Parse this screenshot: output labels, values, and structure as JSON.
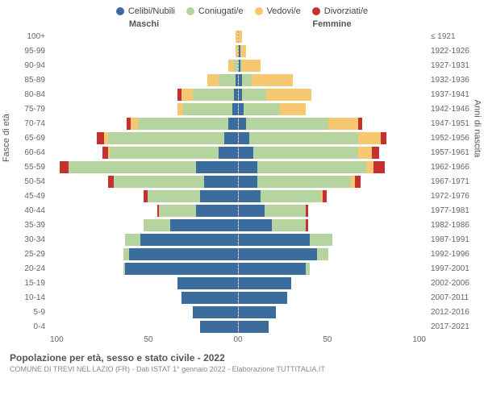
{
  "chart": {
    "type": "population-pyramid",
    "legend": [
      {
        "label": "Celibi/Nubili",
        "color": "#3b6c9e"
      },
      {
        "label": "Coniugati/e",
        "color": "#b5d4a0"
      },
      {
        "label": "Vedovi/e",
        "color": "#f5c871"
      },
      {
        "label": "Divorziati/e",
        "color": "#c6312f"
      }
    ],
    "header_male": "Maschi",
    "header_female": "Femmine",
    "yaxis_left": "Fasce di età",
    "yaxis_right": "Anni di nascita",
    "xmax": 100,
    "xticks": [
      0,
      50,
      100
    ],
    "grid_color": "#eeeeee",
    "background": "#ffffff",
    "label_fontsize": 10,
    "rows": [
      {
        "age": "100+",
        "birth": "≤ 1921",
        "m": {
          "cel": 0,
          "con": 0,
          "ved": 1,
          "div": 0
        },
        "f": {
          "cel": 0,
          "con": 0,
          "ved": 2,
          "div": 0
        }
      },
      {
        "age": "95-99",
        "birth": "1922-1926",
        "m": {
          "cel": 0,
          "con": 0,
          "ved": 1,
          "div": 0
        },
        "f": {
          "cel": 1,
          "con": 0,
          "ved": 3,
          "div": 0
        }
      },
      {
        "age": "90-94",
        "birth": "1927-1931",
        "m": {
          "cel": 0,
          "con": 2,
          "ved": 3,
          "div": 0
        },
        "f": {
          "cel": 1,
          "con": 1,
          "ved": 10,
          "div": 0
        }
      },
      {
        "age": "85-89",
        "birth": "1932-1936",
        "m": {
          "cel": 1,
          "con": 9,
          "ved": 6,
          "div": 0
        },
        "f": {
          "cel": 2,
          "con": 5,
          "ved": 22,
          "div": 0
        }
      },
      {
        "age": "80-84",
        "birth": "1937-1941",
        "m": {
          "cel": 2,
          "con": 22,
          "ved": 6,
          "div": 2
        },
        "f": {
          "cel": 2,
          "con": 13,
          "ved": 24,
          "div": 0
        }
      },
      {
        "age": "75-79",
        "birth": "1942-1946",
        "m": {
          "cel": 3,
          "con": 26,
          "ved": 3,
          "div": 0
        },
        "f": {
          "cel": 3,
          "con": 19,
          "ved": 14,
          "div": 0
        }
      },
      {
        "age": "70-74",
        "birth": "1947-1951",
        "m": {
          "cel": 5,
          "con": 48,
          "ved": 4,
          "div": 2
        },
        "f": {
          "cel": 4,
          "con": 44,
          "ved": 16,
          "div": 2
        }
      },
      {
        "age": "65-69",
        "birth": "1952-1956",
        "m": {
          "cel": 7,
          "con": 62,
          "ved": 2,
          "div": 4
        },
        "f": {
          "cel": 6,
          "con": 58,
          "ved": 12,
          "div": 3
        }
      },
      {
        "age": "60-64",
        "birth": "1957-1961",
        "m": {
          "cel": 10,
          "con": 58,
          "ved": 1,
          "div": 3
        },
        "f": {
          "cel": 8,
          "con": 56,
          "ved": 7,
          "div": 4
        }
      },
      {
        "age": "55-59",
        "birth": "1962-1966",
        "m": {
          "cel": 22,
          "con": 68,
          "ved": 0,
          "div": 5
        },
        "f": {
          "cel": 10,
          "con": 58,
          "ved": 4,
          "div": 6
        }
      },
      {
        "age": "50-54",
        "birth": "1967-1971",
        "m": {
          "cel": 18,
          "con": 48,
          "ved": 0,
          "div": 3
        },
        "f": {
          "cel": 10,
          "con": 50,
          "ved": 2,
          "div": 3
        }
      },
      {
        "age": "45-49",
        "birth": "1972-1976",
        "m": {
          "cel": 20,
          "con": 28,
          "ved": 0,
          "div": 2
        },
        "f": {
          "cel": 12,
          "con": 32,
          "ved": 1,
          "div": 2
        }
      },
      {
        "age": "40-44",
        "birth": "1977-1981",
        "m": {
          "cel": 22,
          "con": 20,
          "ved": 0,
          "div": 1
        },
        "f": {
          "cel": 14,
          "con": 22,
          "ved": 0,
          "div": 1
        }
      },
      {
        "age": "35-39",
        "birth": "1982-1986",
        "m": {
          "cel": 36,
          "con": 14,
          "ved": 0,
          "div": 0
        },
        "f": {
          "cel": 18,
          "con": 18,
          "ved": 0,
          "div": 1
        }
      },
      {
        "age": "30-34",
        "birth": "1987-1991",
        "m": {
          "cel": 52,
          "con": 8,
          "ved": 0,
          "div": 0
        },
        "f": {
          "cel": 38,
          "con": 12,
          "ved": 0,
          "div": 0
        }
      },
      {
        "age": "25-29",
        "birth": "1992-1996",
        "m": {
          "cel": 58,
          "con": 3,
          "ved": 0,
          "div": 0
        },
        "f": {
          "cel": 42,
          "con": 6,
          "ved": 0,
          "div": 0
        }
      },
      {
        "age": "20-24",
        "birth": "1997-2001",
        "m": {
          "cel": 60,
          "con": 1,
          "ved": 0,
          "div": 0
        },
        "f": {
          "cel": 36,
          "con": 2,
          "ved": 0,
          "div": 0
        }
      },
      {
        "age": "15-19",
        "birth": "2002-2006",
        "m": {
          "cel": 32,
          "con": 0,
          "ved": 0,
          "div": 0
        },
        "f": {
          "cel": 28,
          "con": 0,
          "ved": 0,
          "div": 0
        }
      },
      {
        "age": "10-14",
        "birth": "2007-2011",
        "m": {
          "cel": 30,
          "con": 0,
          "ved": 0,
          "div": 0
        },
        "f": {
          "cel": 26,
          "con": 0,
          "ved": 0,
          "div": 0
        }
      },
      {
        "age": "5-9",
        "birth": "2012-2016",
        "m": {
          "cel": 24,
          "con": 0,
          "ved": 0,
          "div": 0
        },
        "f": {
          "cel": 20,
          "con": 0,
          "ved": 0,
          "div": 0
        }
      },
      {
        "age": "0-4",
        "birth": "2017-2021",
        "m": {
          "cel": 20,
          "con": 0,
          "ved": 0,
          "div": 0
        },
        "f": {
          "cel": 16,
          "con": 0,
          "ved": 0,
          "div": 0
        }
      }
    ],
    "title": "Popolazione per età, sesso e stato civile - 2022",
    "subtitle": "COMUNE DI TREVI NEL LAZIO (FR) - Dati ISTAT 1° gennaio 2022 - Elaborazione TUTTITALIA.IT"
  }
}
